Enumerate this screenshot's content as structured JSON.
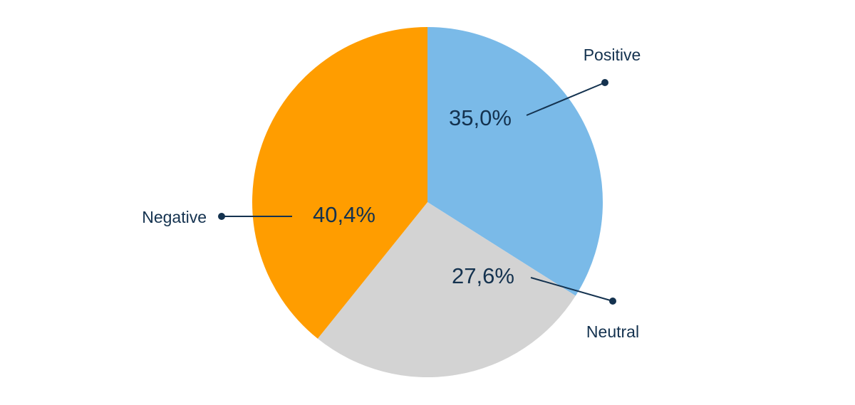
{
  "chart_data": {
    "type": "pie",
    "title": "",
    "slices": [
      {
        "label": "Positive",
        "value": 35.0,
        "display": "35,0%",
        "color": "#7abae8"
      },
      {
        "label": "Neutral",
        "value": 27.6,
        "display": "27,6%",
        "color": "#d3d3d3"
      },
      {
        "label": "Negative",
        "value": 40.4,
        "display": "40,4%",
        "color": "#ff9d00"
      }
    ],
    "legend": "callout labels",
    "start_angle_deg": 90,
    "direction": "clockwise"
  }
}
